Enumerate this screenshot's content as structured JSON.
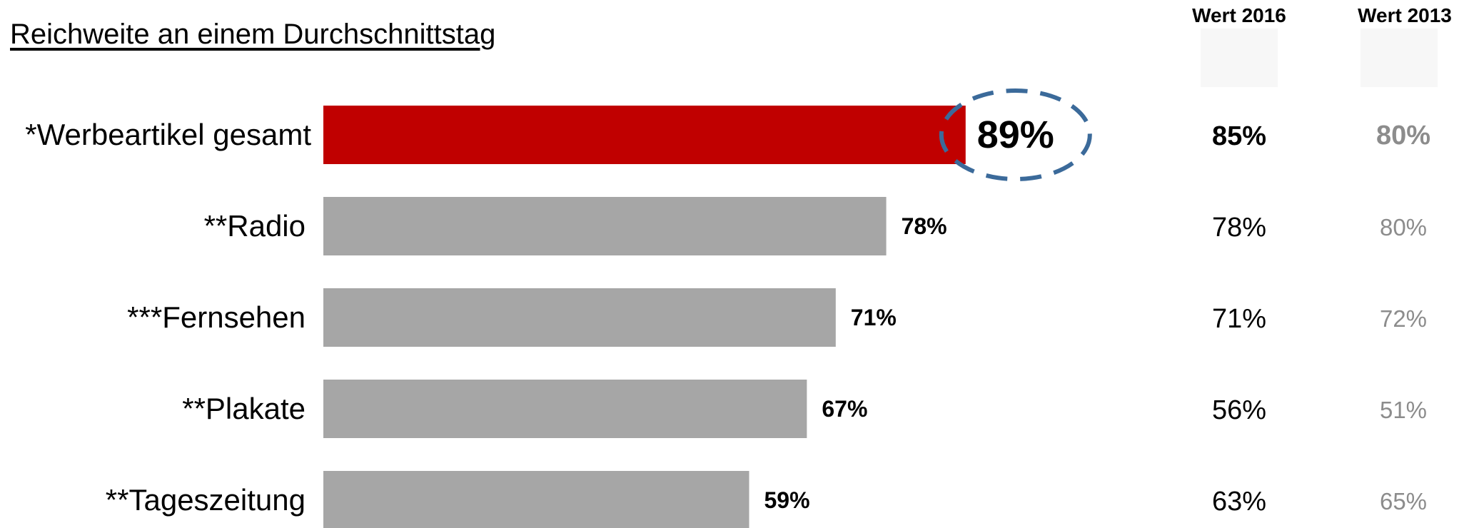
{
  "title": "Reichweite an einem Durchschnittstag",
  "columns": {
    "col2016": "Wert  2016",
    "col2013": "Wert  2013"
  },
  "colors": {
    "highlight": "#c00000",
    "bar": "#a6a6a6",
    "ellipse": "#3b6a9a",
    "value2013": "#8c8c8c",
    "value2013_highlight": "#8c8c8c"
  },
  "chart_data": {
    "type": "bar",
    "orientation": "horizontal",
    "categories": [
      "*Werbeartikel gesamt",
      "**Radio",
      "***Fernsehen",
      "**Plakate",
      "**Tageszeitung"
    ],
    "values": [
      89,
      78,
      71,
      67,
      59
    ],
    "value_labels": [
      "89%",
      "78%",
      "71%",
      "67%",
      "59%"
    ],
    "highlight_index": 0,
    "xlim": [
      0,
      100
    ],
    "table": {
      "wert_2016": [
        "85%",
        "78%",
        "71%",
        "56%",
        "63%"
      ],
      "wert_2013": [
        "80%",
        "80%",
        "72%",
        "51%",
        "65%"
      ]
    }
  }
}
